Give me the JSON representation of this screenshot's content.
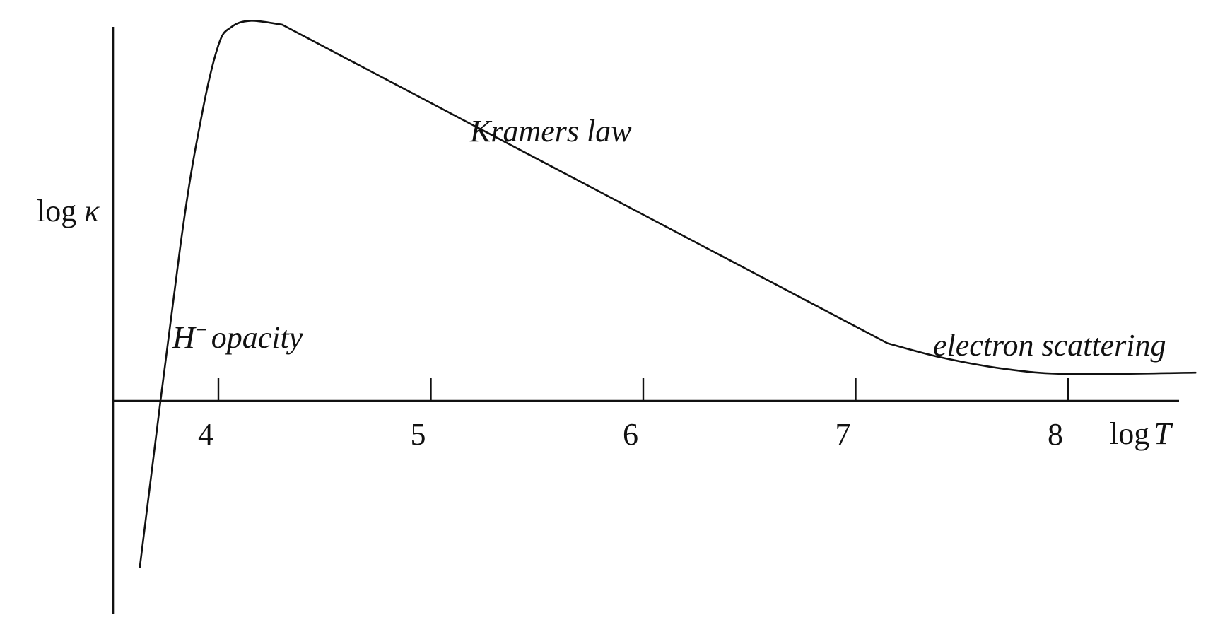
{
  "chart_data": {
    "type": "line",
    "title": "",
    "xlabel": {
      "prefix": "log",
      "var": "T"
    },
    "ylabel": {
      "prefix": "log",
      "var": "κ"
    },
    "x_ticks": [
      4,
      5,
      6,
      7,
      8
    ],
    "x_tick_labels": [
      "4",
      "5",
      "6",
      "7",
      "8"
    ],
    "xlim": [
      3.5,
      8.6
    ],
    "y_ticks_shown": false,
    "grid": false,
    "legend": "none",
    "series": [
      {
        "points": [
          {
            "x": 3.63,
            "y": -1.3
          },
          {
            "x": 3.82,
            "y": 1.2
          },
          {
            "x": 3.92,
            "y": 2.22
          },
          {
            "x": 4.0,
            "y": 2.78
          },
          {
            "x": 4.06,
            "y": 2.92
          },
          {
            "x": 4.15,
            "y": 2.97
          },
          {
            "x": 4.3,
            "y": 2.94
          },
          {
            "x": 7.15,
            "y": 0.45
          },
          {
            "x": 7.4,
            "y": 0.34
          },
          {
            "x": 7.7,
            "y": 0.25
          },
          {
            "x": 8.0,
            "y": 0.21
          },
          {
            "x": 8.6,
            "y": 0.22
          }
        ]
      }
    ],
    "annotations": [
      {
        "text_main": "H",
        "text_sup": "−",
        "text_rest": "opacity",
        "near_x": 3.85,
        "near_y": 0.55
      },
      {
        "text": "Kramers law",
        "near_x": 5.3,
        "near_y": 2.2
      },
      {
        "text": "electron scattering",
        "near_x": 8.05,
        "near_y": 0.48
      }
    ]
  }
}
